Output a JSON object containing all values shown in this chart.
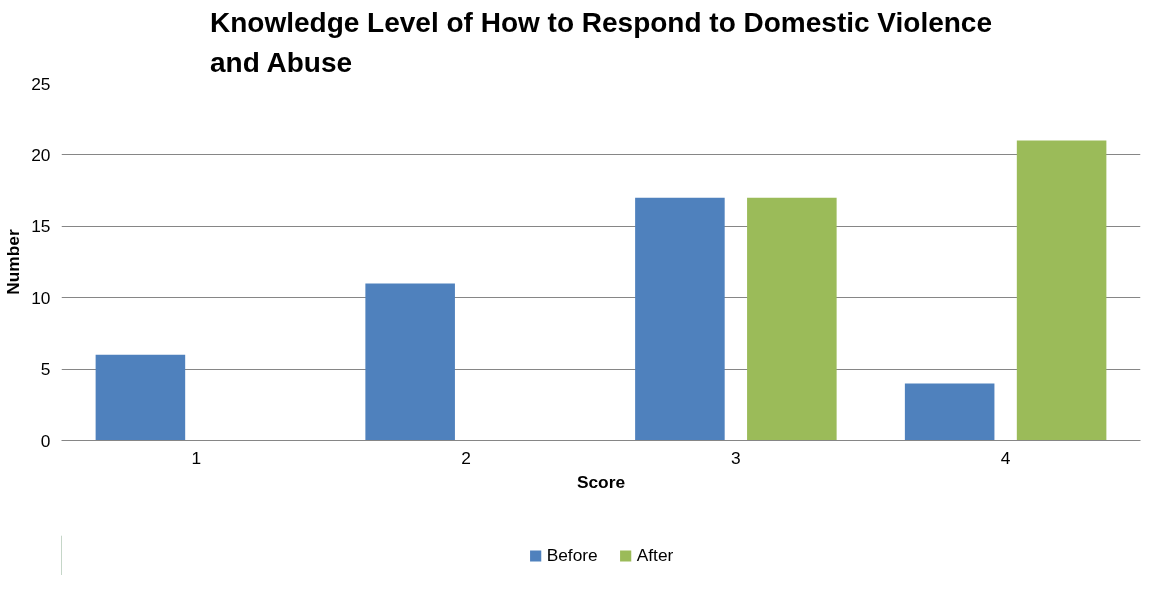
{
  "chart_data": {
    "type": "bar",
    "title": "Knowledge Level of How to Respond to Domestic Violence and Abuse",
    "xlabel": "Score",
    "ylabel": "Number",
    "categories": [
      "1",
      "2",
      "3",
      "4"
    ],
    "series": [
      {
        "name": "Before",
        "color": "#4f81bd",
        "values": [
          6,
          11,
          17,
          4
        ]
      },
      {
        "name": "After",
        "color": "#9bbb59",
        "values": [
          0,
          0,
          17,
          21
        ]
      }
    ],
    "ylim": [
      0,
      25
    ],
    "yticks": [
      0,
      5,
      10,
      15,
      20,
      25
    ],
    "grid": "y",
    "legend": "bottom"
  }
}
